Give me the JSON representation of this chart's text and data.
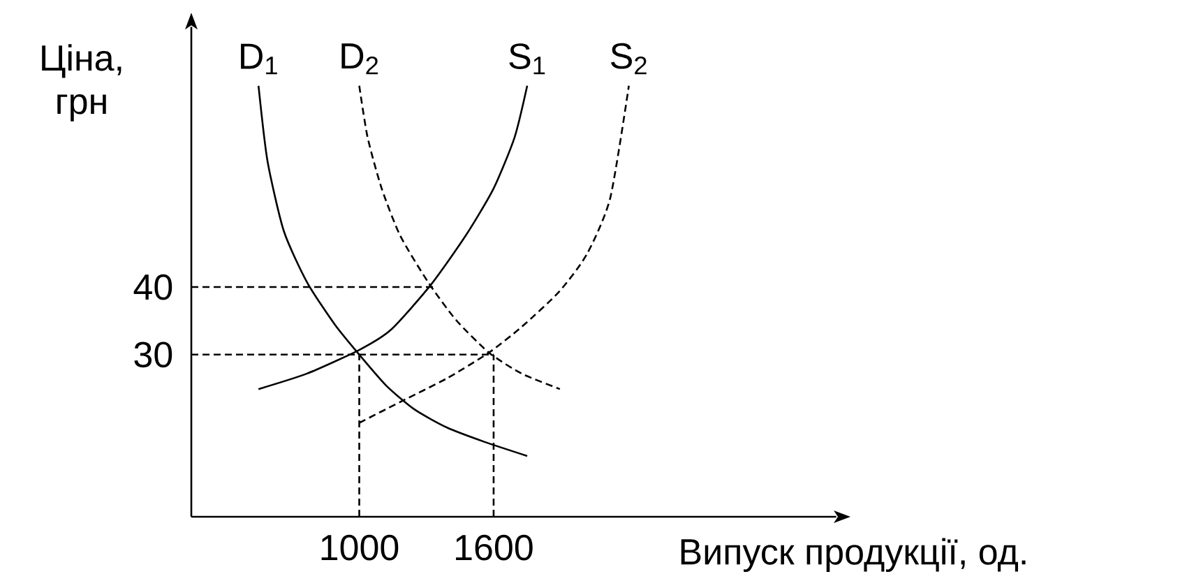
{
  "chart_data": {
    "type": "line",
    "xlabel": "Випуск продукції, од.",
    "ylabel": "Ціна, грн",
    "xlim": [
      250,
      3130
    ],
    "ylim": [
      6,
      78.5
    ],
    "xticks": [
      1000,
      1600
    ],
    "yticks": [
      30,
      40
    ],
    "grid": false,
    "legend": false,
    "marker": "none",
    "series": [
      {
        "name": "D$_{1}$",
        "color": "#000000",
        "line_style": "solid",
        "x": [
          550,
          590,
          663,
          767,
          892,
          1000,
          1121,
          1246,
          1392,
          1558,
          1750
        ],
        "values": [
          69.8,
          58.7,
          48.3,
          40.7,
          34.4,
          30,
          25.4,
          21.9,
          19.2,
          17.1,
          15.0
        ]
      },
      {
        "name": "D$_{2}$",
        "color": "#000000",
        "line_style": "dashed",
        "x": [
          1000,
          1037,
          1100,
          1183,
          1308,
          1433,
          1579,
          1725,
          1896
        ],
        "values": [
          69.8,
          62.2,
          54.6,
          47.6,
          40.7,
          35.1,
          30.3,
          27.2,
          24.9
        ]
      },
      {
        "name": "S$_{1}$",
        "color": "#000000",
        "line_style": "solid",
        "x": [
          550,
          767,
          1000,
          1142,
          1319,
          1475,
          1600,
          1694,
          1750
        ],
        "values": [
          24.9,
          27.2,
          30.7,
          33.7,
          40.3,
          47.6,
          54.6,
          62.2,
          69.8
        ]
      },
      {
        "name": "S$_{2}$",
        "color": "#000000",
        "line_style": "dashed",
        "x": [
          1000,
          1183,
          1392,
          1579,
          1725,
          1892,
          2017,
          2121,
          2204
        ],
        "values": [
          19.9,
          23.0,
          26.5,
          30.3,
          34.1,
          39.3,
          44.9,
          53.2,
          69.8
        ]
      },
      {
        "color": "#000000",
        "line_style": "dashed",
        "x": [
          250,
          1330
        ],
        "values": [
          40,
          40
        ]
      },
      {
        "color": "#000000",
        "line_style": "dashed",
        "x": [
          250,
          1600
        ],
        "values": [
          30,
          30
        ]
      },
      {
        "color": "#000000",
        "line_style": "dashed",
        "x": [
          1000,
          1000
        ],
        "values": [
          6,
          30
        ]
      },
      {
        "color": "#000000",
        "line_style": "dashed",
        "x": [
          1600,
          1600
        ],
        "values": [
          6,
          30
        ]
      }
    ]
  }
}
